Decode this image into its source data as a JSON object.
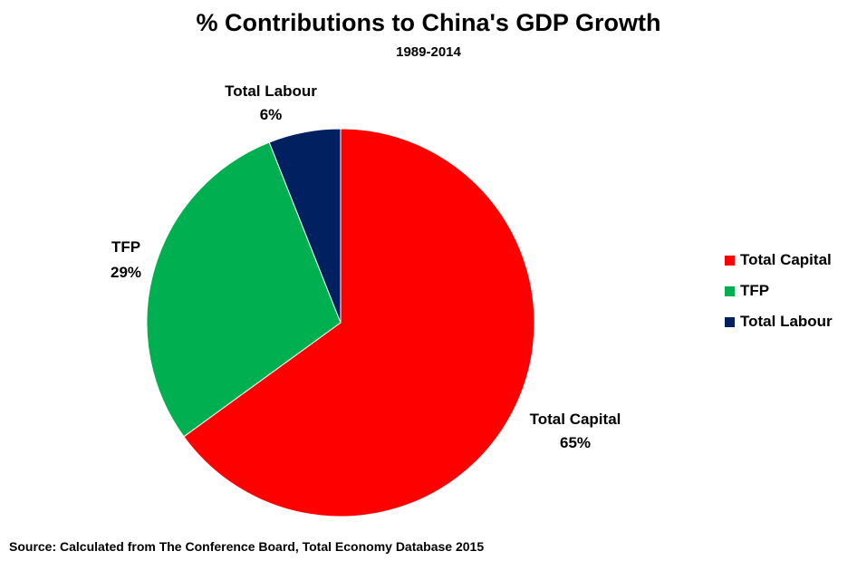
{
  "chart_data": {
    "type": "pie",
    "title": "% Contributions to China's GDP Growth",
    "subtitle": "1989-2014",
    "slices": [
      {
        "name": "Total Capital",
        "value": 65,
        "value_label": "65%",
        "color": "#ff0000"
      },
      {
        "name": "TFP",
        "value": 29,
        "value_label": "29%",
        "color": "#00b050"
      },
      {
        "name": "Total Labour",
        "value": 6,
        "value_label": "6%",
        "color": "#002060"
      }
    ],
    "legend": {
      "position": "right",
      "items": [
        "Total Capital",
        "TFP",
        "Total Labour"
      ]
    },
    "source": "Source: Calculated from The Conference Board, Total Economy Database 2015"
  }
}
